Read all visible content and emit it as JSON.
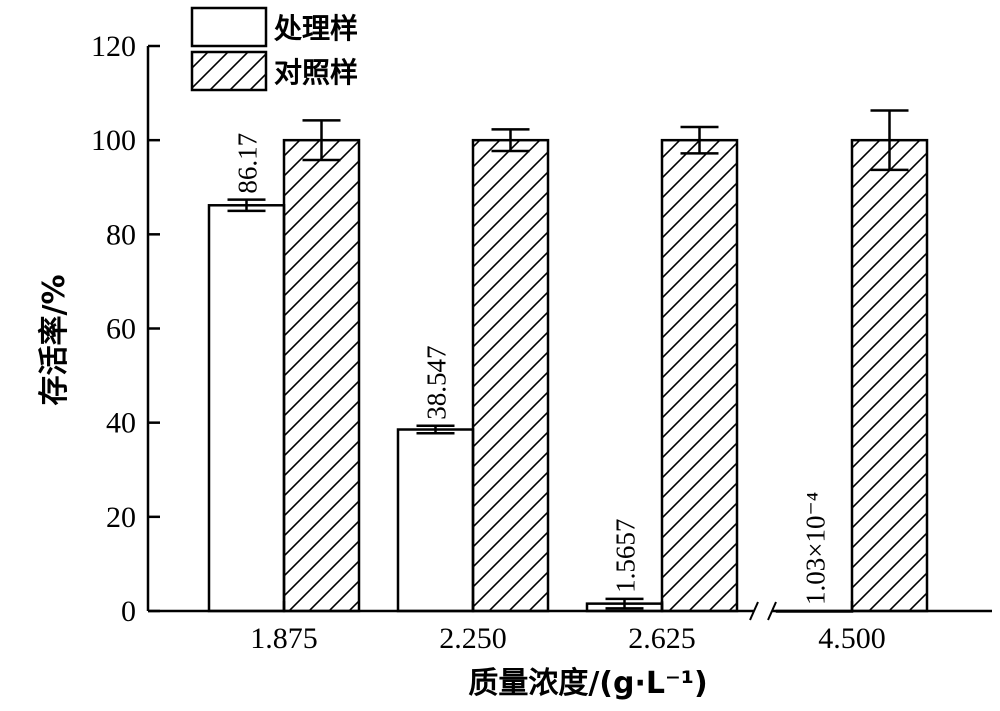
{
  "chart_data": {
    "type": "bar",
    "xlabel": "质量浓度/(g·L⁻¹)",
    "ylabel": "存活率/%",
    "categories": [
      "1.875",
      "2.250",
      "2.625",
      "4.500"
    ],
    "ylim": [
      0,
      120
    ],
    "yticks": [
      "0",
      "20",
      "40",
      "60",
      "80",
      "100",
      "120"
    ],
    "axis_break_before_last": true,
    "legend_position": "top-left",
    "series": [
      {
        "name": "处理样",
        "pattern": "plain",
        "values": [
          86.17,
          38.547,
          1.5657,
          0.000103
        ],
        "errors": [
          1.2,
          0.8,
          1.0,
          0
        ],
        "labels": [
          "86.17",
          "38.547",
          "1.5657",
          "1.03×10⁻⁴"
        ]
      },
      {
        "name": "对照样",
        "pattern": "hatch",
        "values": [
          100,
          100,
          100,
          100
        ],
        "errors": [
          4.2,
          2.3,
          2.8,
          6.3
        ],
        "labels": [
          "",
          "",
          "",
          ""
        ]
      }
    ]
  }
}
